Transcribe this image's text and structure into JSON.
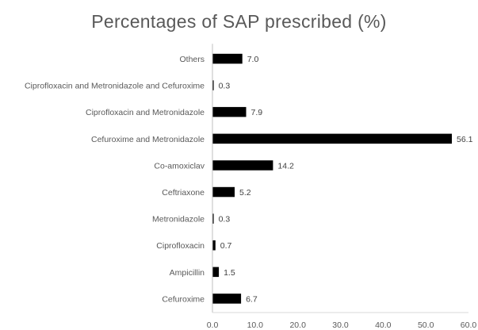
{
  "chart_data": {
    "type": "bar",
    "orientation": "horizontal",
    "title": "Percentages of SAP prescribed (%)",
    "categories": [
      "Others",
      "Ciprofloxacin and Metronidazole and Cefuroxime",
      "Ciprofloxacin and Metronidazole",
      "Cefuroxime and Metronidazole",
      "Co-amoxiclav",
      "Ceftriaxone",
      "Metronidazole",
      "Ciprofloxacin",
      "Ampicillin",
      "Cefuroxime"
    ],
    "values": [
      7.0,
      0.3,
      7.9,
      56.1,
      14.2,
      5.2,
      0.3,
      0.7,
      1.5,
      6.7
    ],
    "value_labels": [
      "7.0",
      "0.3",
      "7.9",
      "56.1",
      "14.2",
      "5.2",
      "0.3",
      "0.7",
      "1.5",
      "6.7"
    ],
    "xlim": [
      0,
      60
    ],
    "xticks": [
      "0.0",
      "10.0",
      "20.0",
      "30.0",
      "40.0",
      "50.0",
      "60.0"
    ],
    "xlabel": "",
    "ylabel": "",
    "grid": false,
    "legend": "none",
    "bar_color": "#000000"
  }
}
